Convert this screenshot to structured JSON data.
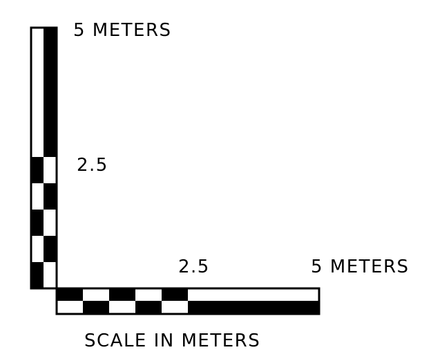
{
  "scale_bar": {
    "vertical": {
      "end_label": "5 METERS",
      "mid_label": "2.5"
    },
    "horizontal": {
      "mid_label": "2.5",
      "end_label": "5 METERS"
    },
    "caption": "SCALE IN METERS",
    "colors": {
      "ink": "#000000",
      "paper": "#ffffff"
    }
  }
}
